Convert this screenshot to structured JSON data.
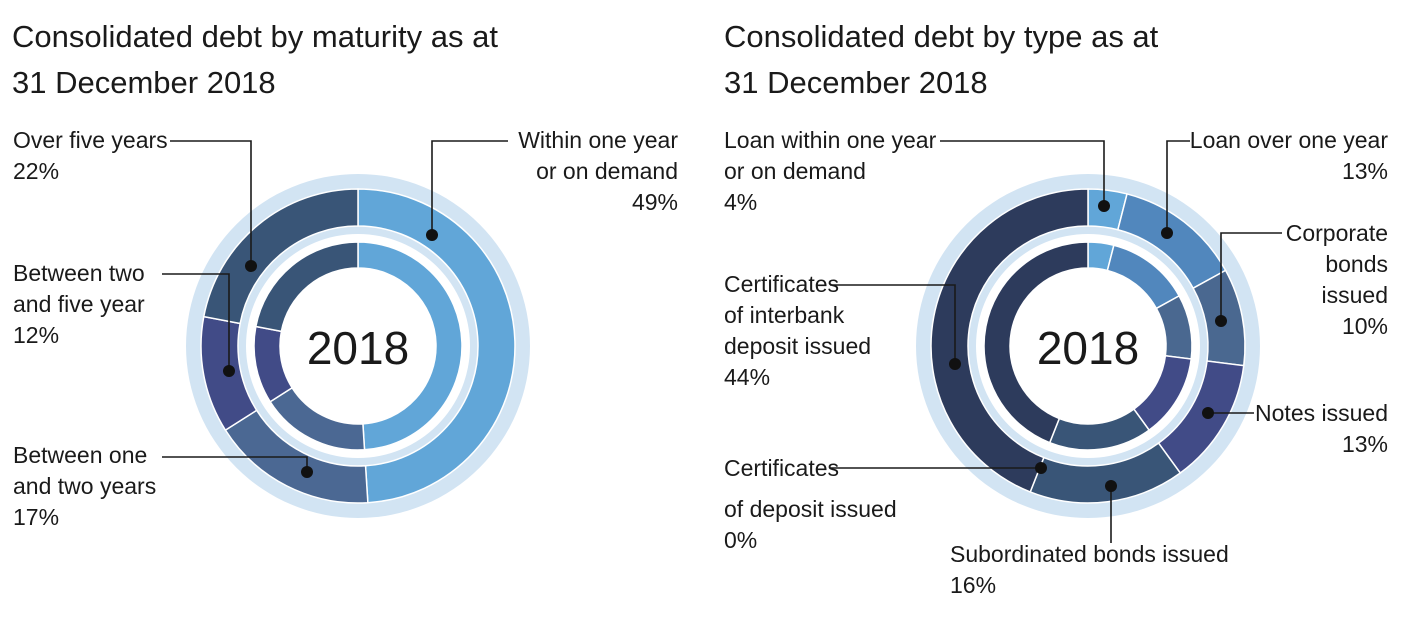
{
  "chart_data": [
    {
      "type": "pie",
      "title_line1": "Consolidated debt by maturity as at",
      "title_line2": "31 December 2018",
      "center_label": "2018",
      "slices": [
        {
          "label_lines": [
            "Within one year",
            "or on demand"
          ],
          "value_text": "49%",
          "value": 49,
          "color": "#61a6d8"
        },
        {
          "label_lines": [
            "Between one",
            "and two years"
          ],
          "value_text": "17%",
          "value": 17,
          "color": "#4b6893"
        },
        {
          "label_lines": [
            "Between two",
            "and five year"
          ],
          "value_text": "12%",
          "value": 12,
          "color": "#414b87"
        },
        {
          "label_lines": [
            "Over five years"
          ],
          "value_text": "22%",
          "value": 22,
          "color": "#395577"
        }
      ],
      "ring_color": "#d2e4f3"
    },
    {
      "type": "pie",
      "title_line1": "Consolidated debt by type as at",
      "title_line2": "31 December 2018",
      "center_label": "2018",
      "slices": [
        {
          "label_lines": [
            "Loan within one year",
            "or on demand"
          ],
          "value_text": "4%",
          "value": 4,
          "color": "#61a6d8"
        },
        {
          "label_lines": [
            "Loan over one year"
          ],
          "value_text": "13%",
          "value": 13,
          "color": "#5187bd"
        },
        {
          "label_lines": [
            "Corporate",
            "bonds",
            "issued"
          ],
          "value_text": "10%",
          "value": 10,
          "color": "#4a6890"
        },
        {
          "label_lines": [
            "Notes issued"
          ],
          "value_text": "13%",
          "value": 13,
          "color": "#414b87"
        },
        {
          "label_lines": [
            "Subordinated bonds issued"
          ],
          "value_text": "16%",
          "value": 16,
          "color": "#395577"
        },
        {
          "label_lines": [
            "Certificates",
            "of deposit issued"
          ],
          "value_text": "0%",
          "value": 0,
          "color": "#3a4f70"
        },
        {
          "label_lines": [
            "Certificates",
            "of interbank",
            "deposit issued"
          ],
          "value_text": "44%",
          "value": 44,
          "color": "#2d3b5c"
        }
      ],
      "ring_color": "#d2e4f3"
    }
  ]
}
